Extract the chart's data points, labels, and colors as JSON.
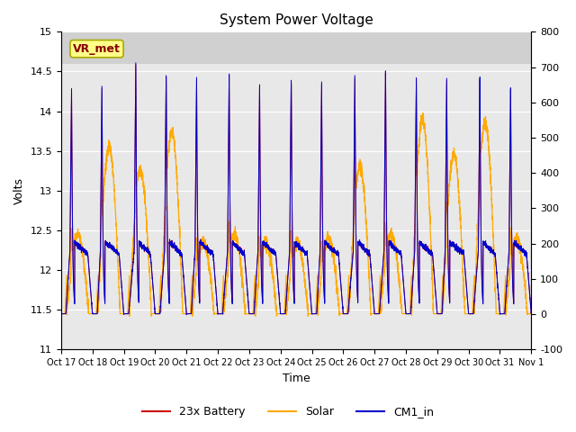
{
  "title": "System Power Voltage",
  "xlabel": "Time",
  "ylabel_left": "Volts",
  "ylim_left": [
    11.0,
    15.0
  ],
  "ylim_right": [
    -100,
    800
  ],
  "yticks_left": [
    11.0,
    11.5,
    12.0,
    12.5,
    13.0,
    13.5,
    14.0,
    14.5,
    15.0
  ],
  "yticks_right": [
    -100,
    0,
    100,
    200,
    300,
    400,
    500,
    600,
    700,
    800
  ],
  "xtick_labels": [
    "Oct 17",
    "Oct 18",
    "Oct 19",
    "Oct 20",
    "Oct 21",
    "Oct 22",
    "Oct 23",
    "Oct 24",
    "Oct 25",
    "Oct 26",
    "Oct 27",
    "Oct 28",
    "Oct 29",
    "Oct 30",
    "Oct 31",
    "Nov 1"
  ],
  "n_days": 15,
  "background_color": "#ffffff",
  "plot_bg_color": "#e8e8e8",
  "upper_band_color": "#d0d0d0",
  "grid_color": "#ffffff",
  "battery_color": "#cc0000",
  "solar_color": "#ffaa00",
  "cm1_color": "#0000cc",
  "vr_met_box_color": "#ffff88",
  "vr_met_border_color": "#aaaa00",
  "vr_met_text_color": "#880000",
  "legend_items": [
    "23x Battery",
    "Solar",
    "CM1_in"
  ],
  "annotation": "VR_met"
}
